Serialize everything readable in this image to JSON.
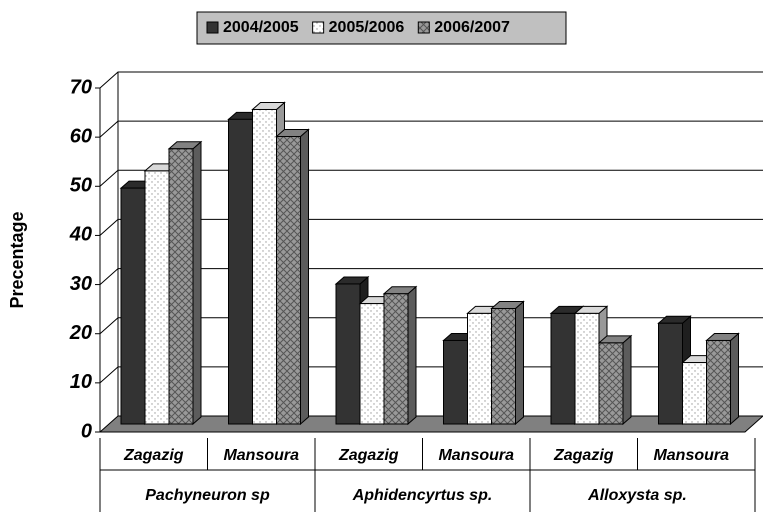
{
  "chart_data": {
    "type": "bar3d",
    "ylabel": "Precentage",
    "categories": [
      "Zagazig",
      "Mansoura",
      "Zagazig",
      "Mansoura",
      "Zagazig",
      "Mansoura"
    ],
    "groups": [
      "Pachyneuron sp",
      "Aphidencyrtus sp.",
      "Alloxysta sp."
    ],
    "series": [
      {
        "name": "2004/2005",
        "color": "#333333",
        "values": [
          48,
          62,
          28.5,
          17,
          22.5,
          20.5
        ]
      },
      {
        "name": "2005/2006",
        "color": "#ffffff",
        "values": [
          51.5,
          64,
          24.5,
          22.5,
          22.5,
          12.5
        ]
      },
      {
        "name": "2006/2007",
        "color": "#999999",
        "values": [
          56,
          58.5,
          26.5,
          23.5,
          16.5,
          17
        ]
      }
    ],
    "ylim": [
      0,
      70
    ],
    "yticks": [
      0,
      10,
      20,
      30,
      40,
      50,
      60,
      70
    ],
    "grid": true,
    "legend": "top"
  }
}
